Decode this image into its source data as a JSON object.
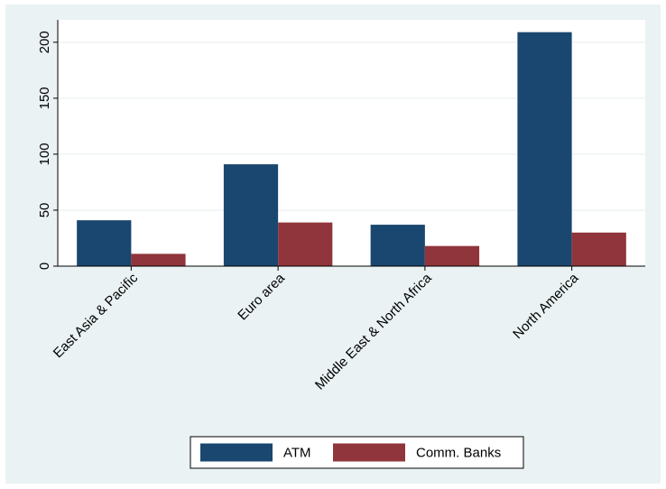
{
  "chart_data": {
    "type": "bar",
    "title": "",
    "xlabel": "",
    "ylabel": "",
    "categories": [
      "East Asia & Pacific",
      "Euro area",
      "Middle East & North Africa",
      "North America"
    ],
    "series": [
      {
        "name": "ATM",
        "color": "#1a476f",
        "values": [
          41,
          91,
          37,
          209
        ]
      },
      {
        "name": "Comm. Banks",
        "color": "#90353b",
        "values": [
          11,
          39,
          18,
          30
        ]
      }
    ],
    "ylim": [
      0,
      220
    ],
    "yticks": [
      0,
      50,
      100,
      150,
      200
    ],
    "grid": true,
    "legend_position": "bottom"
  }
}
